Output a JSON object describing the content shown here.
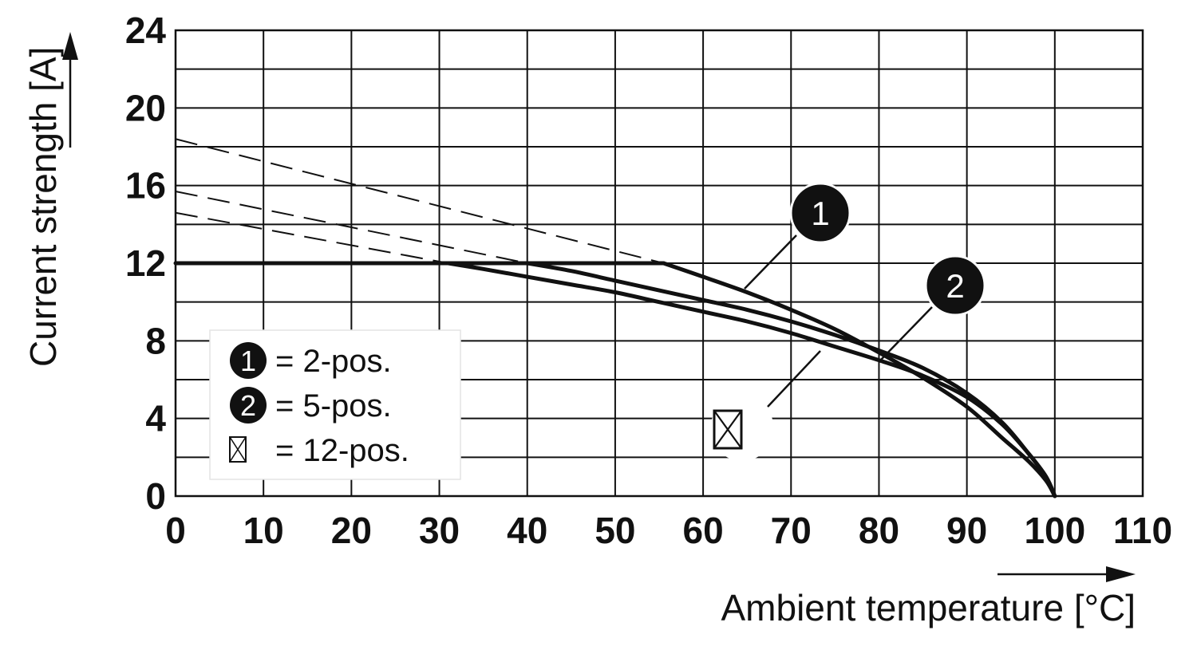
{
  "chart_data": {
    "type": "line",
    "xlabel": "Ambient temperature [°C]",
    "ylabel": "Current strength [A]",
    "xlim": [
      0,
      110
    ],
    "ylim": [
      0,
      24
    ],
    "x_ticks": [
      "0",
      "10",
      "20",
      "30",
      "40",
      "50",
      "60",
      "70",
      "80",
      "90",
      "100",
      "110"
    ],
    "y_ticks": [
      "0",
      "4",
      "8",
      "12",
      "16",
      "20",
      "24"
    ],
    "grid": true,
    "legend_position": "lower-left",
    "series": [
      {
        "name": "2-pos.",
        "marker": "1",
        "limit_A": 12,
        "x": [
          55.5,
          60,
          65,
          70,
          75,
          80,
          85,
          90,
          94,
          97,
          99,
          100
        ],
        "y": [
          12,
          11.3,
          10.5,
          9.6,
          8.6,
          7.4,
          6.1,
          4.6,
          3.0,
          1.8,
          0.8,
          0
        ]
      },
      {
        "name": "5-pos.",
        "marker": "2",
        "limit_A": 12,
        "x": [
          40,
          45,
          50,
          55,
          60,
          65,
          70,
          75,
          80,
          85,
          90,
          94,
          97,
          99,
          100
        ],
        "y": [
          12,
          11.6,
          11.1,
          10.6,
          10.1,
          9.6,
          9.0,
          8.3,
          7.5,
          6.6,
          5.3,
          3.8,
          2.2,
          1.0,
          0
        ]
      },
      {
        "name": "12-pos.",
        "marker": "crossed-box",
        "limit_A": 12,
        "x": [
          31,
          35,
          40,
          45,
          50,
          55,
          60,
          65,
          70,
          75,
          80,
          85,
          90,
          94,
          97,
          99,
          100
        ],
        "y": [
          12,
          11.7,
          11.3,
          10.9,
          10.5,
          10.0,
          9.5,
          9.0,
          8.4,
          7.7,
          7.0,
          6.2,
          5.1,
          3.7,
          2.2,
          1.0,
          0
        ]
      }
    ],
    "extrapolations": [
      {
        "series": "2-pos.",
        "x": [
          0,
          55.5
        ],
        "y": [
          18.4,
          12
        ]
      },
      {
        "series": "5-pos.",
        "x": [
          0,
          40
        ],
        "y": [
          15.7,
          12
        ]
      },
      {
        "series": "12-pos.",
        "x": [
          0,
          31
        ],
        "y": [
          14.6,
          12
        ]
      }
    ],
    "current_limit": {
      "x": [
        0,
        55.5
      ],
      "y": 12
    }
  },
  "legend": [
    {
      "marker": "1",
      "text": "= 2-pos."
    },
    {
      "marker": "2",
      "text": "= 5-pos."
    },
    {
      "marker": "crossed-box",
      "text": "= 12-pos."
    }
  ]
}
